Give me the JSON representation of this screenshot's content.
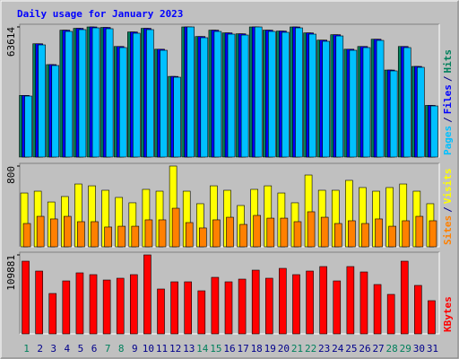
{
  "title": "Daily usage for January 2023",
  "legend_separator": "/",
  "chart_data": [
    {
      "type": "bar",
      "ylim": [
        0,
        63614
      ],
      "yticks": [
        63614
      ],
      "series": [
        {
          "name": "Hits",
          "color": "#00805c",
          "values": [
            30130,
            55390,
            45200,
            62030,
            62920,
            63610,
            63370,
            54060,
            61150,
            62920,
            52720,
            39430,
            63614,
            58930,
            62030,
            60700,
            60260,
            63610,
            62030,
            61590,
            63610,
            60700,
            57160,
            59810,
            52720,
            54060,
            57600,
            42540,
            54060,
            44310,
            25250
          ]
        },
        {
          "name": "Files",
          "color": "#0000ff",
          "values": [
            30130,
            55390,
            45200,
            62030,
            62920,
            63610,
            63370,
            54060,
            61150,
            62920,
            52720,
            39430,
            63614,
            58930,
            62030,
            60700,
            60260,
            63610,
            62030,
            61590,
            63610,
            60700,
            57160,
            59810,
            52720,
            54060,
            57600,
            42540,
            54060,
            44310,
            25250
          ]
        },
        {
          "name": "Pages",
          "color": "#00c0ff",
          "values": [
            29830,
            54840,
            44750,
            61420,
            62300,
            63170,
            62740,
            53520,
            60540,
            62300,
            52200,
            39040,
            63614,
            58350,
            61420,
            60100,
            59660,
            63610,
            61420,
            60980,
            63170,
            60100,
            56590,
            59220,
            52200,
            53520,
            57030,
            42120,
            53520,
            43870,
            25000
          ]
        }
      ]
    },
    {
      "type": "bar",
      "ylim": [
        0,
        800
      ],
      "yticks": [
        800
      ],
      "series": [
        {
          "name": "Visits",
          "color": "#ffff00",
          "values": [
            533,
            551,
            444,
            498,
            622,
            604,
            560,
            489,
            436,
            569,
            551,
            800,
            551,
            427,
            604,
            560,
            409,
            569,
            604,
            533,
            436,
            711,
            560,
            560,
            658,
            587,
            551,
            587,
            622,
            551,
            427
          ]
        },
        {
          "name": "Sites",
          "color": "#ff8000",
          "values": [
            231,
            302,
            276,
            302,
            249,
            249,
            196,
            204,
            204,
            267,
            267,
            382,
            240,
            187,
            267,
            293,
            222,
            311,
            284,
            284,
            249,
            347,
            293,
            231,
            258,
            231,
            276,
            204,
            258,
            302,
            258
          ]
        }
      ]
    },
    {
      "type": "bar",
      "ylim": [
        0,
        109881
      ],
      "yticks": [
        109881
      ],
      "categories": [
        "1",
        "2",
        "3",
        "4",
        "5",
        "6",
        "7",
        "8",
        "9",
        "10",
        "11",
        "12",
        "13",
        "14",
        "15",
        "16",
        "17",
        "18",
        "19",
        "20",
        "21",
        "22",
        "23",
        "24",
        "25",
        "26",
        "27",
        "28",
        "29",
        "30",
        "31"
      ],
      "category_colors": [
        "#00805c",
        "#00008b",
        "#00008b",
        "#00008b",
        "#00008b",
        "#00008b",
        "#00805c",
        "#00805c",
        "#00008b",
        "#00008b",
        "#00008b",
        "#00008b",
        "#00008b",
        "#00805c",
        "#00805c",
        "#00008b",
        "#00008b",
        "#00008b",
        "#00008b",
        "#00008b",
        "#00805c",
        "#00805c",
        "#00008b",
        "#00008b",
        "#00008b",
        "#00008b",
        "#00008b",
        "#00805c",
        "#00805c",
        "#00008b",
        "#00008b"
      ],
      "series": [
        {
          "name": "KBytes",
          "color": "#ff0000",
          "values": [
            101140,
            87400,
            56190,
            73670,
            84910,
            82410,
            74920,
            77420,
            82410,
            109881,
            62430,
            72420,
            72420,
            59930,
            78660,
            72420,
            76170,
            88650,
            77420,
            91150,
            82410,
            87400,
            93650,
            73670,
            93650,
            86150,
            68670,
            54940,
            101140,
            67420,
            46200
          ]
        }
      ]
    }
  ]
}
